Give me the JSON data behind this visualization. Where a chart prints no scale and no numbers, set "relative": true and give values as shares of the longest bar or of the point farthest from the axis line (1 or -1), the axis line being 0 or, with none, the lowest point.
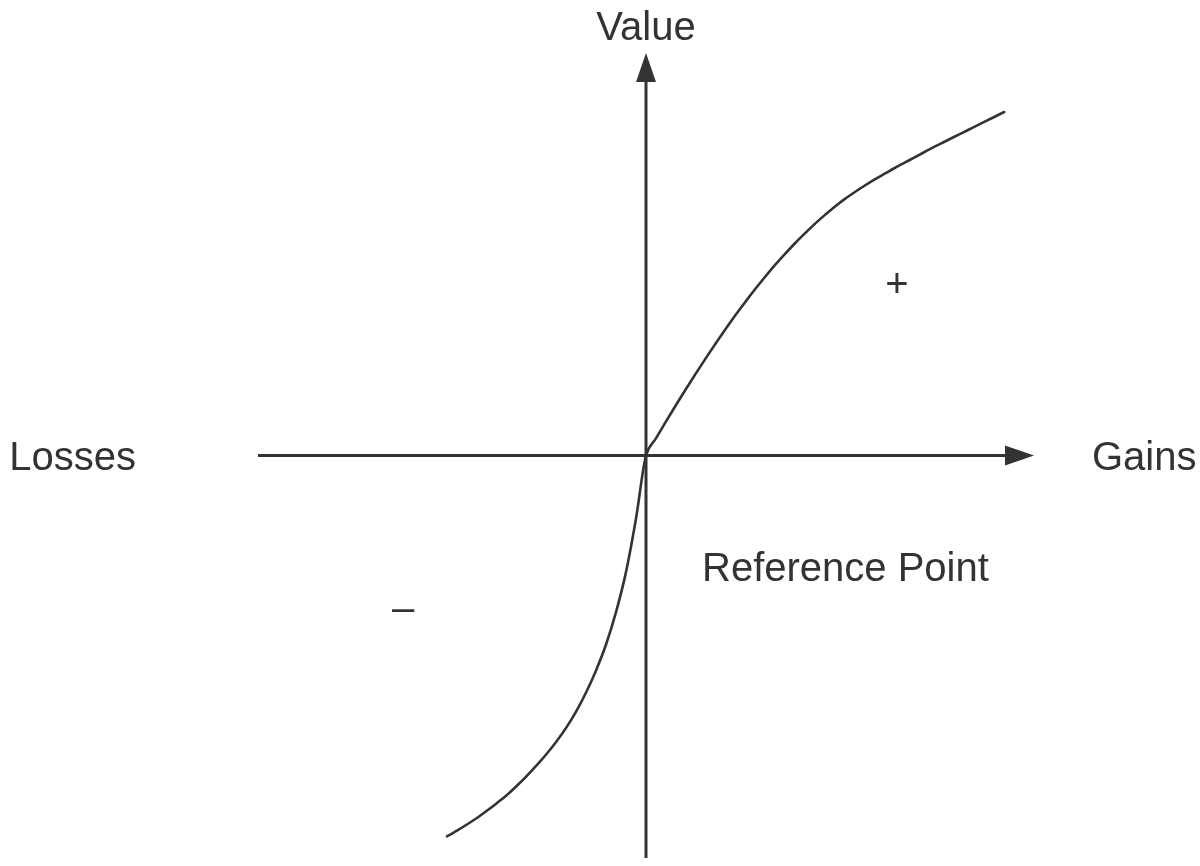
{
  "chart_data": {
    "type": "line",
    "ylabel": "Value",
    "annotations": [
      "Losses",
      "Gains",
      "Reference Point",
      "+",
      "–"
    ],
    "categories": [
      null,
      null,
      null,
      null,
      null,
      null,
      null,
      null,
      null,
      null,
      null,
      null,
      null,
      null,
      null,
      null,
      null,
      null,
      null,
      null,
      null,
      null,
      null,
      null,
      null,
      null,
      null,
      null,
      null,
      null,
      null,
      null,
      null,
      null,
      null,
      null,
      null,
      null,
      null,
      null,
      null,
      null,
      null,
      null,
      null,
      null,
      null,
      null,
      null,
      null,
      null,
      null,
      null,
      null,
      null,
      null,
      null
    ],
    "values": [
      -1.0,
      -0.985,
      -0.969,
      -0.952,
      -0.933,
      -0.913,
      -0.892,
      -0.868,
      -0.842,
      -0.814,
      -0.784,
      -0.751,
      -0.714,
      -0.671,
      -0.621,
      -0.563,
      -0.495,
      -0.41,
      -0.305,
      -0.165,
      0,
      0.045,
      0.089,
      0.132,
      0.174,
      0.215,
      0.255,
      0.294,
      0.332,
      0.369,
      0.404,
      0.438,
      0.47,
      0.501,
      0.53,
      0.558,
      0.584,
      0.609,
      0.632,
      0.654,
      0.674,
      0.692,
      0.709,
      0.725,
      0.74,
      0.755,
      0.769,
      0.783,
      0.797,
      0.811,
      0.824,
      0.837,
      0.85,
      0.863,
      0.876,
      0.889,
      0.902
    ],
    "color": "#333333",
    "relative": true,
    "marker": "none",
    "line_style": "solid"
  }
}
